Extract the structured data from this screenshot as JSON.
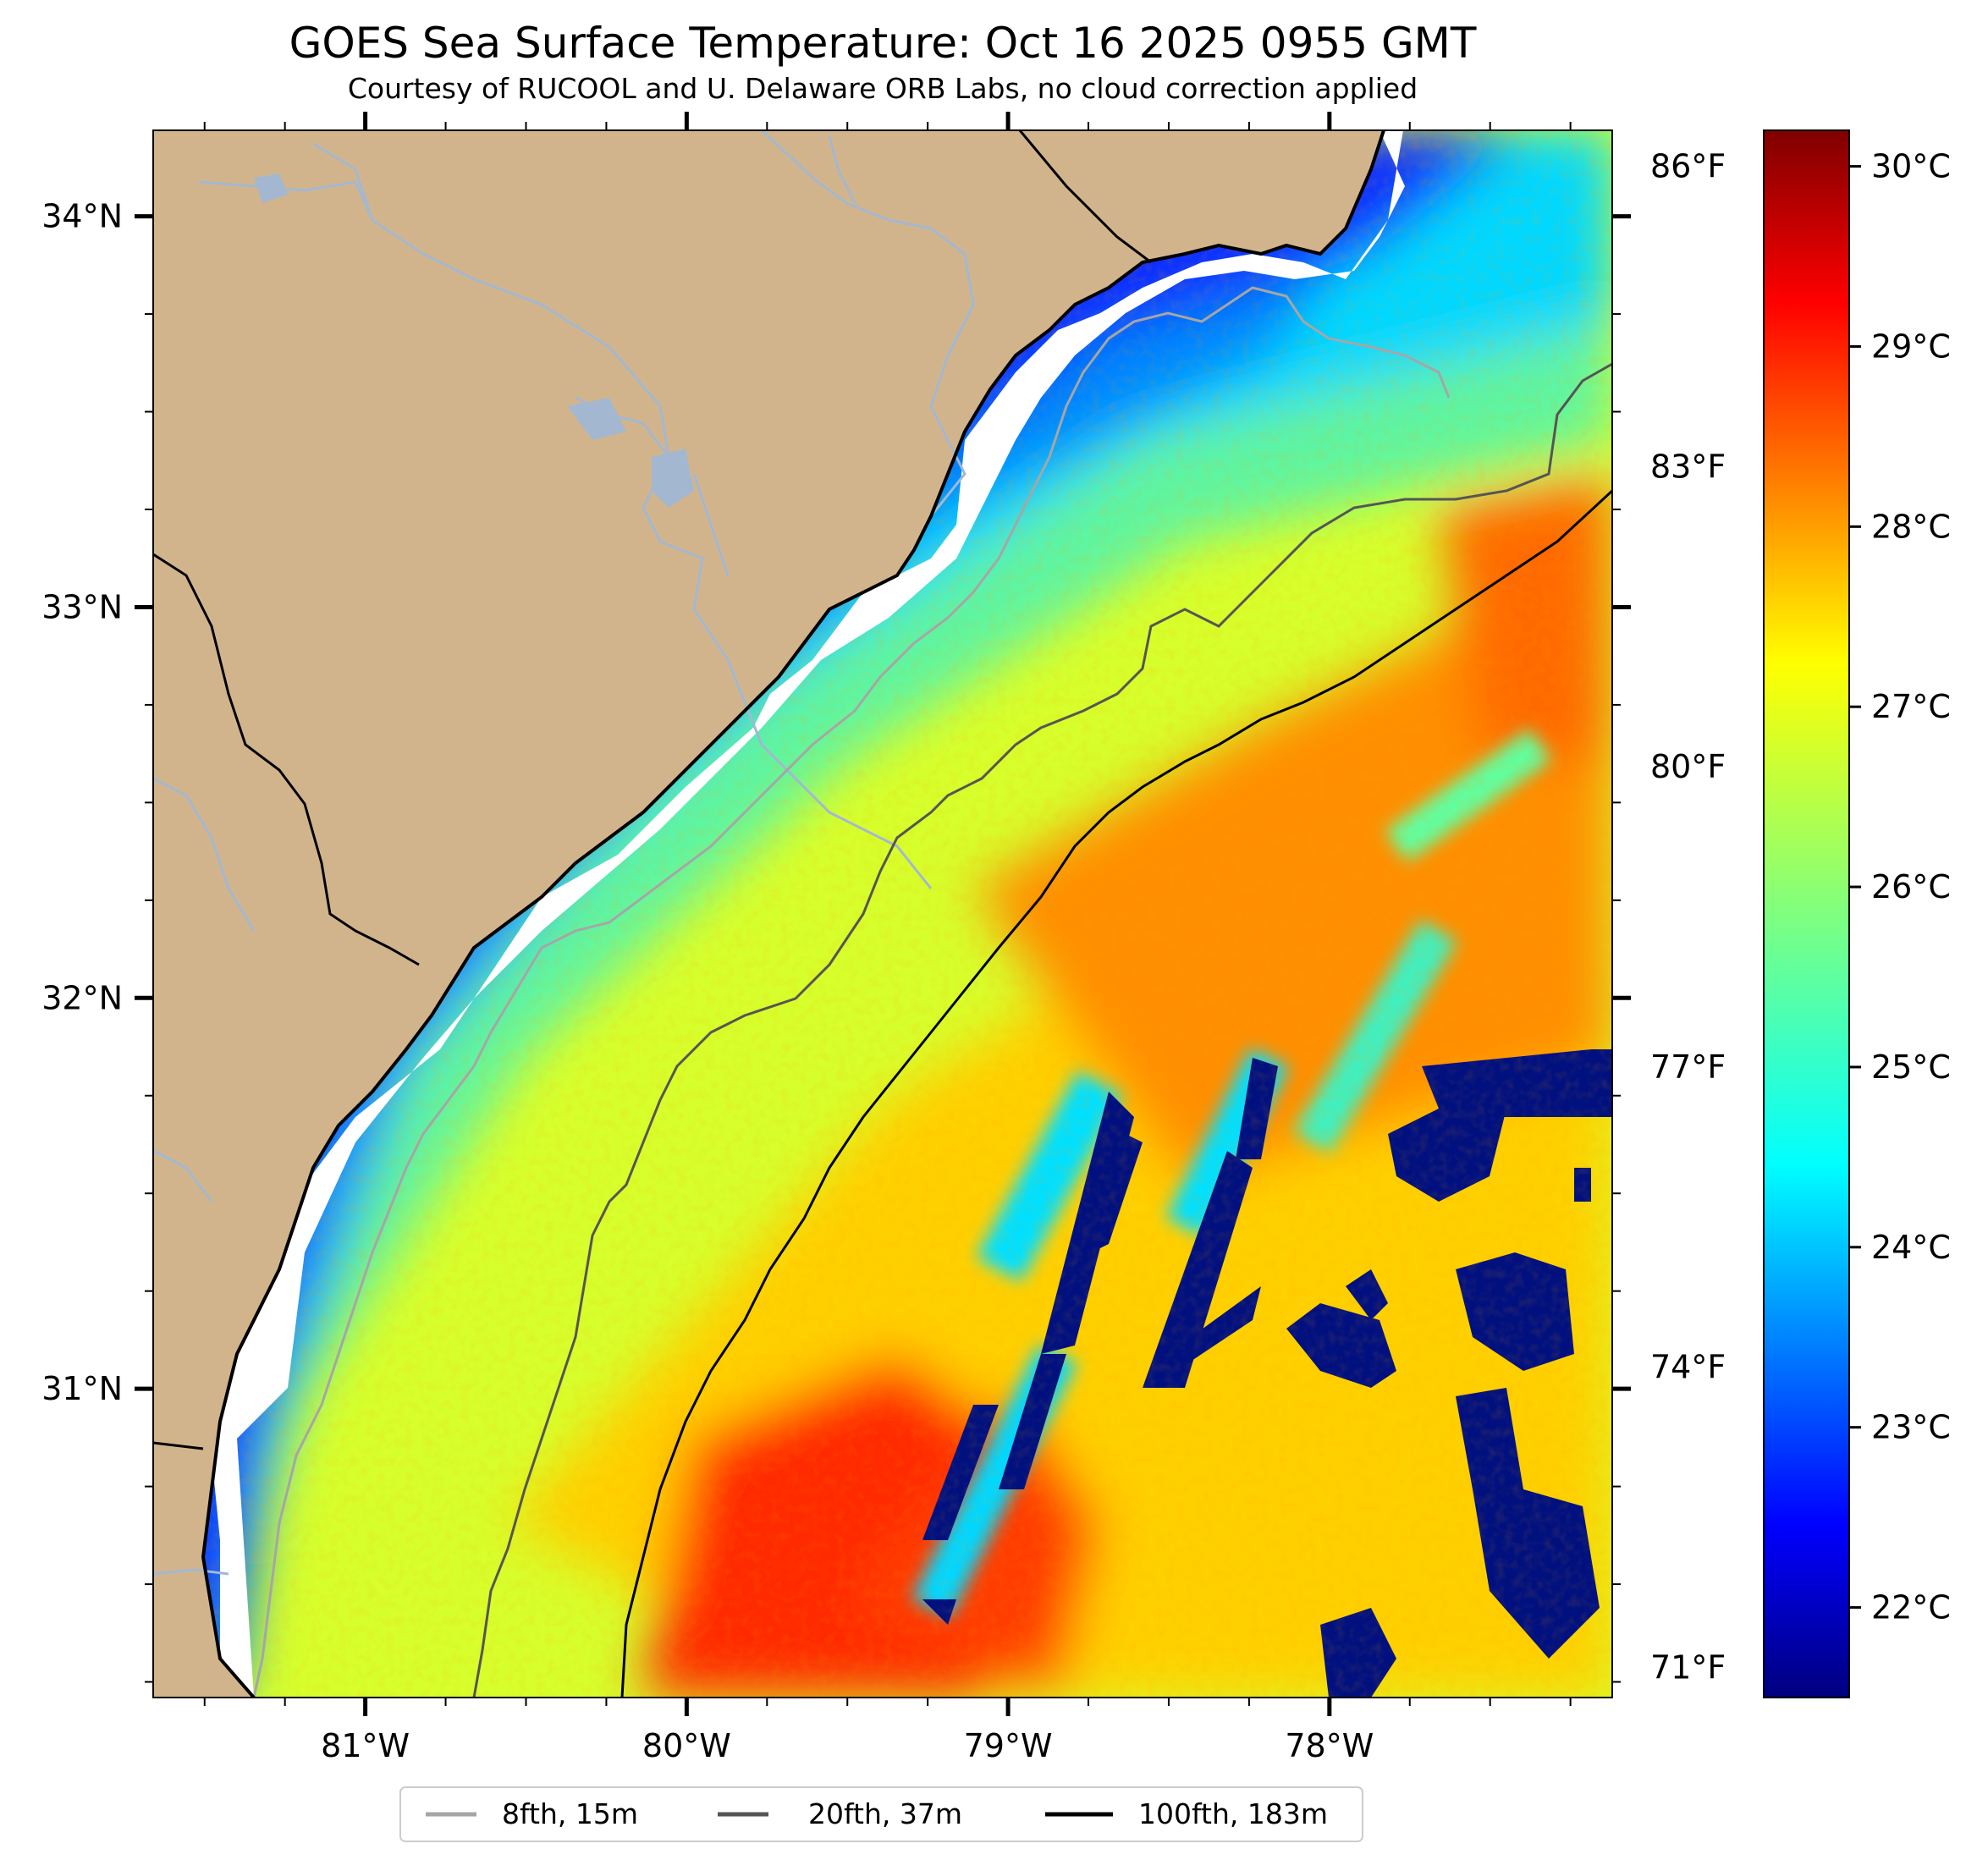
{
  "title": "GOES Sea Surface Temperature: Oct 16 2025 0955 GMT",
  "subtitle": "Courtesy of RUCOOL and U. Delaware ORB Labs, no cloud correction applied",
  "map": {
    "lon_range": [
      -81.66,
      -77.12
    ],
    "lat_range": [
      30.21,
      34.22
    ],
    "lon_ticks": [
      {
        "value": -81,
        "label": "81°W"
      },
      {
        "value": -80,
        "label": "80°W"
      },
      {
        "value": -79,
        "label": "79°W"
      },
      {
        "value": -78,
        "label": "78°W"
      }
    ],
    "lat_ticks": [
      {
        "value": 34,
        "label": "34°N"
      },
      {
        "value": 33,
        "label": "33°N"
      },
      {
        "value": 32,
        "label": "32°N"
      },
      {
        "value": 31,
        "label": "31°N"
      }
    ]
  },
  "fahrenheit_ticks": [
    {
      "value": 86,
      "label": "86°F"
    },
    {
      "value": 83,
      "label": "83°F"
    },
    {
      "value": 80,
      "label": "80°F"
    },
    {
      "value": 77,
      "label": "77°F"
    },
    {
      "value": 74,
      "label": "74°F"
    },
    {
      "value": 71,
      "label": "71°F"
    }
  ],
  "colorbar": {
    "min_c": 21.5,
    "max_c": 30.2,
    "colormap": "jet",
    "ticks": [
      {
        "value": 30,
        "label": "30°C"
      },
      {
        "value": 29,
        "label": "29°C"
      },
      {
        "value": 28,
        "label": "28°C"
      },
      {
        "value": 27,
        "label": "27°C"
      },
      {
        "value": 26,
        "label": "26°C"
      },
      {
        "value": 25,
        "label": "25°C"
      },
      {
        "value": 24,
        "label": "24°C"
      },
      {
        "value": 23,
        "label": "23°C"
      },
      {
        "value": 22,
        "label": "22°C"
      }
    ]
  },
  "legend": {
    "items": [
      {
        "label": "8fth, 15m",
        "color": "#a6a6a6"
      },
      {
        "label": "20fth, 37m",
        "color": "#555555"
      },
      {
        "label": "100fth, 183m",
        "color": "#000000"
      }
    ]
  },
  "colors": {
    "land": "#d2b48c",
    "river": "#a3b8d0",
    "coastline": "#000000",
    "no_data": "#ffffff"
  }
}
